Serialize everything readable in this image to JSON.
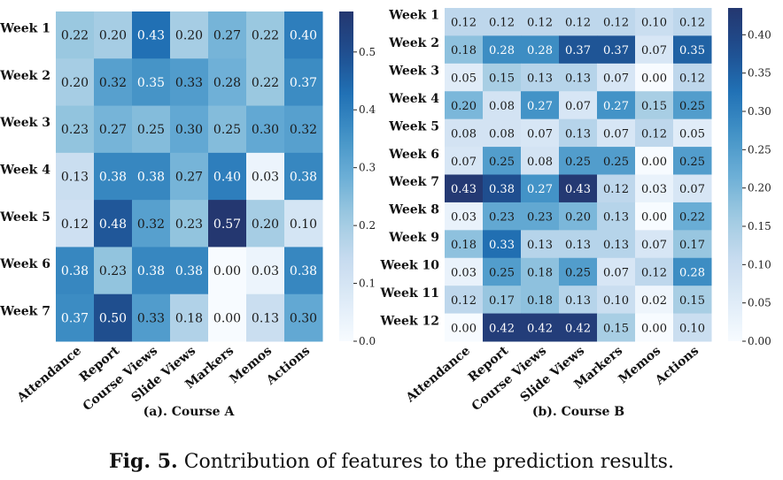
{
  "figure": {
    "caption_label": "Fig. 5.",
    "caption_text": "Contribution of features to the prediction results."
  },
  "chart_data": [
    {
      "type": "heatmap",
      "subtitle": "(a). Course A",
      "x_categories": [
        "Attendance",
        "Report",
        "Course Views",
        "Slide Views",
        "Markers",
        "Memos",
        "Actions"
      ],
      "y_categories": [
        "Week 1",
        "Week 2",
        "Week 3",
        "Week 4",
        "Week 5",
        "Week 6",
        "Week 7"
      ],
      "values": [
        [
          0.22,
          0.2,
          0.43,
          0.2,
          0.27,
          0.22,
          0.4
        ],
        [
          0.2,
          0.32,
          0.35,
          0.33,
          0.28,
          0.22,
          0.37
        ],
        [
          0.23,
          0.27,
          0.25,
          0.3,
          0.25,
          0.3,
          0.32
        ],
        [
          0.13,
          0.38,
          0.38,
          0.27,
          0.4,
          0.03,
          0.38
        ],
        [
          0.12,
          0.48,
          0.32,
          0.23,
          0.57,
          0.2,
          0.1
        ],
        [
          0.38,
          0.23,
          0.38,
          0.38,
          0.0,
          0.03,
          0.38
        ],
        [
          0.37,
          0.5,
          0.33,
          0.18,
          0.0,
          0.13,
          0.3
        ]
      ],
      "colorbar": {
        "min": 0.0,
        "max": 0.57,
        "ticks": [
          "0.0",
          "0.1",
          "0.2",
          "0.3",
          "0.4",
          "0.5"
        ]
      },
      "colormap": "Blues"
    },
    {
      "type": "heatmap",
      "subtitle": "(b). Course B",
      "x_categories": [
        "Attendance",
        "Report",
        "Course Views",
        "Slide Views",
        "Markers",
        "Memos",
        "Actions"
      ],
      "y_categories": [
        "Week 1",
        "Week 2",
        "Week 3",
        "Week 4",
        "Week 5",
        "Week 6",
        "Week 7",
        "Week 8",
        "Week 9",
        "Week 10",
        "Week 11",
        "Week 12"
      ],
      "values": [
        [
          0.12,
          0.12,
          0.12,
          0.12,
          0.12,
          0.1,
          0.12
        ],
        [
          0.18,
          0.28,
          0.28,
          0.37,
          0.37,
          0.07,
          0.35
        ],
        [
          0.05,
          0.15,
          0.13,
          0.13,
          0.07,
          0.0,
          0.12
        ],
        [
          0.2,
          0.08,
          0.27,
          0.07,
          0.27,
          0.15,
          0.25
        ],
        [
          0.08,
          0.08,
          0.07,
          0.13,
          0.07,
          0.12,
          0.05
        ],
        [
          0.07,
          0.25,
          0.08,
          0.25,
          0.25,
          0.0,
          0.25
        ],
        [
          0.43,
          0.38,
          0.27,
          0.43,
          0.12,
          0.03,
          0.07
        ],
        [
          0.03,
          0.23,
          0.23,
          0.2,
          0.13,
          0.0,
          0.22
        ],
        [
          0.18,
          0.33,
          0.13,
          0.13,
          0.13,
          0.07,
          0.17
        ],
        [
          0.03,
          0.25,
          0.18,
          0.25,
          0.07,
          0.12,
          0.28
        ],
        [
          0.12,
          0.17,
          0.18,
          0.13,
          0.1,
          0.02,
          0.15
        ],
        [
          0.0,
          0.42,
          0.42,
          0.42,
          0.15,
          0.0,
          0.1
        ]
      ],
      "colorbar": {
        "min": 0.0,
        "max": 0.435,
        "ticks": [
          "0.00",
          "0.05",
          "0.10",
          "0.15",
          "0.20",
          "0.25",
          "0.30",
          "0.35",
          "0.40"
        ]
      },
      "colormap": "Blues"
    }
  ]
}
